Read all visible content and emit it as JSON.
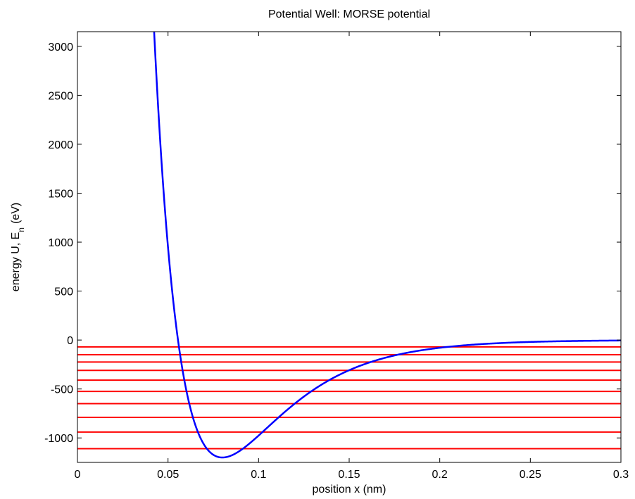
{
  "chart_data": {
    "type": "line",
    "title": "Potential Well: MORSE potential",
    "xlabel": "position x (nm)",
    "ylabel_main": "energy U, E",
    "ylabel_sub": "n",
    "ylabel_unit": "(eV)",
    "xlim": [
      0,
      0.3
    ],
    "ylim": [
      -1250,
      3150
    ],
    "grid": false,
    "x_ticks": [
      0,
      0.05,
      0.1,
      0.15,
      0.2,
      0.25,
      0.3
    ],
    "x_tick_labels": [
      "0",
      "0.05",
      "0.1",
      "0.15",
      "0.2",
      "0.25",
      "0.3"
    ],
    "y_ticks": [
      -1000,
      -500,
      0,
      500,
      1000,
      1500,
      2000,
      2500,
      3000
    ],
    "y_tick_labels": [
      "-1000",
      "-500",
      "0",
      "500",
      "1000",
      "1500",
      "2000",
      "2500",
      "3000"
    ],
    "potential": {
      "color": "#0000ff",
      "well_depth": 1200,
      "equilibrium_x": 0.08,
      "width_parameter": 28.3,
      "x_max": 0.3
    },
    "energy_levels": {
      "color": "#ff0000",
      "values": [
        -1110,
        -940,
        -790,
        -650,
        -525,
        -410,
        -310,
        -225,
        -150,
        -70
      ]
    }
  }
}
